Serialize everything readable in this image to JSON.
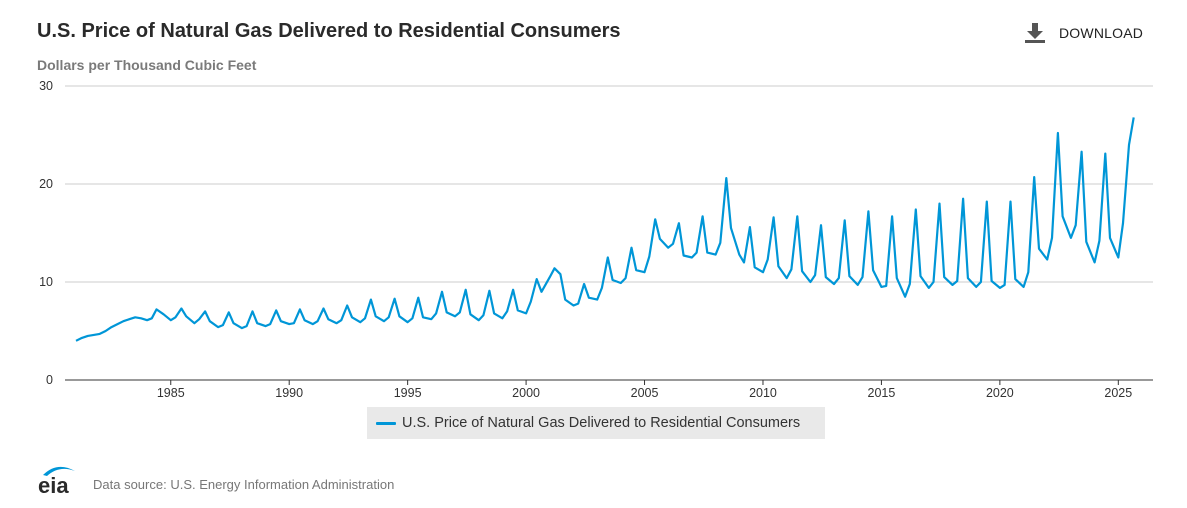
{
  "header": {
    "title": "U.S. Price of Natural Gas Delivered to Residential Consumers",
    "subtitle": "Dollars per Thousand Cubic Feet",
    "download_label": "DOWNLOAD"
  },
  "legend": {
    "label": "U.S. Price of Natural Gas Delivered to Residential Consumers"
  },
  "footer": {
    "logo_text": "eia",
    "source": "Data source: U.S. Energy Information Administration"
  },
  "colors": {
    "series": "#0096d7",
    "grid": "#cccccc",
    "logo": "#0096d7"
  },
  "chart_data": {
    "type": "line",
    "title": "U.S. Price of Natural Gas Delivered to Residential Consumers",
    "ylabel": "Dollars per Thousand Cubic Feet",
    "xlabel": "",
    "xlim": [
      1981.0,
      2026.0
    ],
    "ylim": [
      0,
      30
    ],
    "y_ticks": [
      0,
      10,
      20,
      30
    ],
    "x_ticks": [
      1985,
      1990,
      1995,
      2000,
      2005,
      2010,
      2015,
      2020,
      2025
    ],
    "grid": true,
    "legend_position": "bottom-center",
    "series": [
      {
        "name": "U.S. Price of Natural Gas Delivered to Residential Consumers",
        "frequency": "monthly",
        "x": [
          1981.0,
          1981.25,
          1981.5,
          1981.75,
          1982.0,
          1982.25,
          1982.5,
          1982.75,
          1983.0,
          1983.25,
          1983.5,
          1983.75,
          1984.0,
          1984.2,
          1984.4,
          1984.7,
          1985.0,
          1985.2,
          1985.45,
          1985.65,
          1986.0,
          1986.2,
          1986.45,
          1986.65,
          1987.0,
          1987.2,
          1987.45,
          1987.65,
          1988.0,
          1988.2,
          1988.45,
          1988.65,
          1989.0,
          1989.2,
          1989.45,
          1989.65,
          1990.0,
          1990.2,
          1990.45,
          1990.65,
          1991.0,
          1991.2,
          1991.45,
          1991.65,
          1992.0,
          1992.2,
          1992.45,
          1992.65,
          1993.0,
          1993.2,
          1993.45,
          1993.65,
          1994.0,
          1994.2,
          1994.45,
          1994.65,
          1995.0,
          1995.2,
          1995.45,
          1995.65,
          1996.0,
          1996.2,
          1996.45,
          1996.65,
          1997.0,
          1997.2,
          1997.45,
          1997.65,
          1998.0,
          1998.2,
          1998.45,
          1998.65,
          1999.0,
          1999.2,
          1999.45,
          1999.65,
          2000.0,
          2000.2,
          2000.45,
          2000.65,
          2001.0,
          2001.2,
          2001.45,
          2001.65,
          2002.0,
          2002.2,
          2002.45,
          2002.65,
          2003.0,
          2003.2,
          2003.45,
          2003.65,
          2004.0,
          2004.2,
          2004.45,
          2004.65,
          2005.0,
          2005.2,
          2005.45,
          2005.65,
          2006.0,
          2006.2,
          2006.45,
          2006.65,
          2007.0,
          2007.2,
          2007.45,
          2007.65,
          2008.0,
          2008.2,
          2008.45,
          2008.65,
          2009.0,
          2009.2,
          2009.45,
          2009.65,
          2010.0,
          2010.2,
          2010.45,
          2010.65,
          2011.0,
          2011.2,
          2011.45,
          2011.65,
          2012.0,
          2012.2,
          2012.45,
          2012.65,
          2013.0,
          2013.2,
          2013.45,
          2013.65,
          2014.0,
          2014.2,
          2014.45,
          2014.65,
          2015.0,
          2015.2,
          2015.45,
          2015.65,
          2016.0,
          2016.2,
          2016.45,
          2016.65,
          2017.0,
          2017.2,
          2017.45,
          2017.65,
          2018.0,
          2018.2,
          2018.45,
          2018.65,
          2019.0,
          2019.2,
          2019.45,
          2019.65,
          2020.0,
          2020.2,
          2020.45,
          2020.65,
          2021.0,
          2021.2,
          2021.45,
          2021.65,
          2022.0,
          2022.2,
          2022.45,
          2022.65,
          2023.0,
          2023.2,
          2023.45,
          2023.65,
          2024.0,
          2024.2,
          2024.45,
          2024.65,
          2025.0,
          2025.2,
          2025.45,
          2025.65
        ],
        "values": [
          4.0,
          4.3,
          4.5,
          4.6,
          4.7,
          5.0,
          5.4,
          5.7,
          6.0,
          6.2,
          6.4,
          6.3,
          6.1,
          6.3,
          7.2,
          6.7,
          6.1,
          6.4,
          7.3,
          6.5,
          5.8,
          6.2,
          7.0,
          6.0,
          5.4,
          5.6,
          6.9,
          5.8,
          5.3,
          5.5,
          7.0,
          5.8,
          5.5,
          5.7,
          7.1,
          6.0,
          5.7,
          5.8,
          7.2,
          6.1,
          5.7,
          6.0,
          7.3,
          6.2,
          5.8,
          6.1,
          7.6,
          6.4,
          5.9,
          6.3,
          8.2,
          6.5,
          6.0,
          6.4,
          8.3,
          6.5,
          5.9,
          6.3,
          8.4,
          6.4,
          6.2,
          6.8,
          9.0,
          6.9,
          6.5,
          6.9,
          9.2,
          6.7,
          6.1,
          6.6,
          9.1,
          6.8,
          6.3,
          7.0,
          9.2,
          7.1,
          6.8,
          8.0,
          10.3,
          9.0,
          10.5,
          11.4,
          10.8,
          8.2,
          7.6,
          7.8,
          9.8,
          8.4,
          8.2,
          9.4,
          12.5,
          10.2,
          9.9,
          10.4,
          13.5,
          11.2,
          11.0,
          12.6,
          16.4,
          14.4,
          13.5,
          13.9,
          16.0,
          12.7,
          12.5,
          13.0,
          16.7,
          13.0,
          12.8,
          14.0,
          20.6,
          15.5,
          12.8,
          12.0,
          15.6,
          11.5,
          11.0,
          12.3,
          16.6,
          11.6,
          10.4,
          11.3,
          16.7,
          11.1,
          10.0,
          10.7,
          15.8,
          10.5,
          9.8,
          10.4,
          16.3,
          10.6,
          9.7,
          10.5,
          17.2,
          11.2,
          9.5,
          9.6,
          16.7,
          10.4,
          8.5,
          9.8,
          17.4,
          10.6,
          9.4,
          10.0,
          18.0,
          10.5,
          9.7,
          10.1,
          18.5,
          10.4,
          9.5,
          10.0,
          18.2,
          10.1,
          9.4,
          9.7,
          18.2,
          10.3,
          9.5,
          11.0,
          20.7,
          13.4,
          12.3,
          14.5,
          25.2,
          16.7,
          14.5,
          15.8,
          23.3,
          14.1,
          12.0,
          14.2,
          23.1,
          14.5,
          12.5,
          16.0,
          24.0,
          26.8
        ]
      }
    ]
  }
}
